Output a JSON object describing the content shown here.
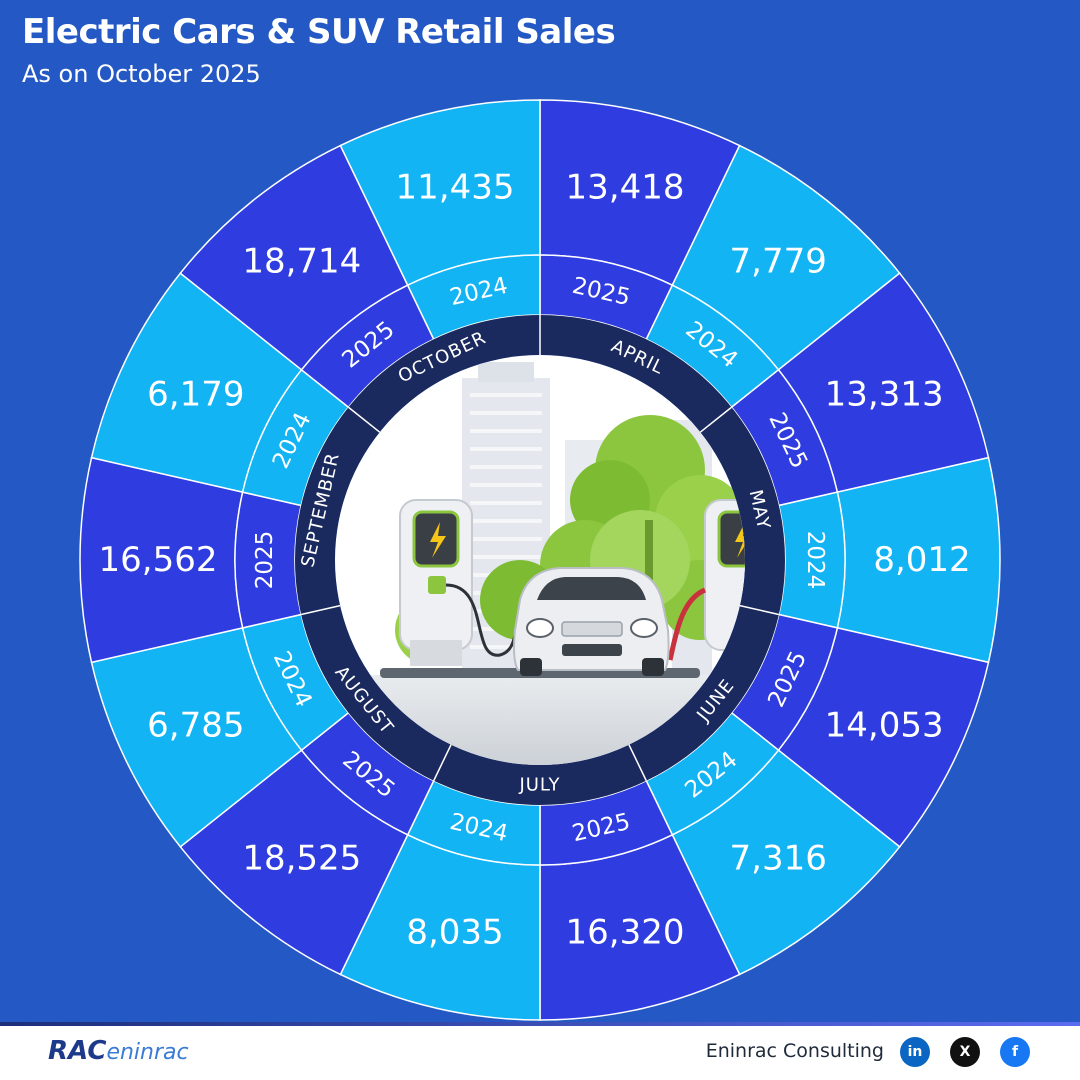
{
  "header": {
    "title": "Electric Cars & SUV Retail Sales",
    "subtitle": "As on October 2025"
  },
  "colors": {
    "background": "#2458c4",
    "dark_segment": "#2e3ce0",
    "light_segment": "#12b4f4",
    "month_ring": "#1b2a5e",
    "divider": "#ffffff"
  },
  "chart_data": {
    "type": "radial",
    "title": "Electric Cars & SUV Retail Sales",
    "subtitle": "As on October 2025",
    "categories": [
      "APRIL",
      "MAY",
      "JUNE",
      "JULY",
      "AUGUST",
      "SEPTEMBER",
      "OCTOBER"
    ],
    "series": [
      {
        "name": "2025",
        "values": [
          13418,
          13313,
          14053,
          16320,
          18525,
          16562,
          18714
        ]
      },
      {
        "name": "2024",
        "values": [
          7779,
          8012,
          7316,
          8035,
          6785,
          6179,
          11435
        ]
      }
    ],
    "value_labels": {
      "2025": [
        "13,418",
        "13,313",
        "14,053",
        "16,320",
        "18,525",
        "16,562",
        "18,714"
      ],
      "2024": [
        "7,779",
        "8,012",
        "7,316",
        "8,035",
        "6,785",
        "6,179",
        "11,435"
      ]
    },
    "year_labels": [
      "2025",
      "2024"
    ]
  },
  "footer": {
    "logo_main": "RAC",
    "logo_sub": "eninrac",
    "company": "Eninrac Consulting",
    "social_icons": [
      "linkedin-icon",
      "x-icon",
      "facebook-icon"
    ],
    "linkedin_label": "in",
    "x_label": "X",
    "facebook_label": "f"
  }
}
